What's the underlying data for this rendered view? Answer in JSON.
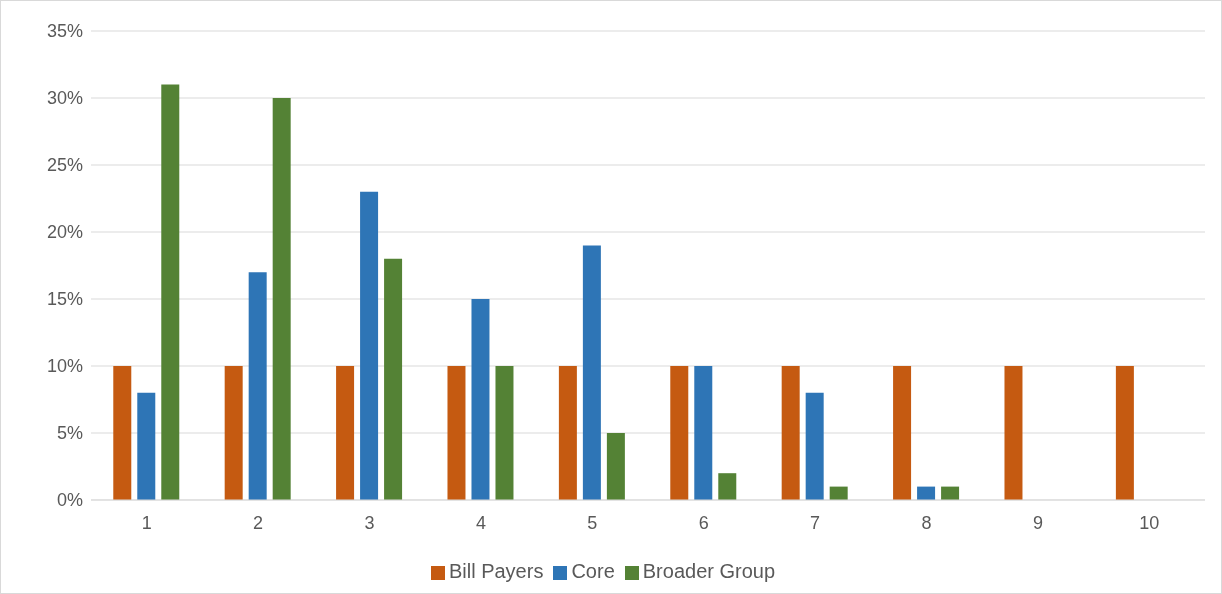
{
  "chart_data": {
    "type": "bar",
    "categories": [
      "1",
      "2",
      "3",
      "4",
      "5",
      "6",
      "7",
      "8",
      "9",
      "10"
    ],
    "series": [
      {
        "name": "Bill Payers",
        "color": "#c55a11",
        "values": [
          10,
          10,
          10,
          10,
          10,
          10,
          10,
          10,
          10,
          10
        ]
      },
      {
        "name": "Core",
        "color": "#2e75b6",
        "values": [
          8,
          17,
          23,
          15,
          19,
          10,
          8,
          1,
          0,
          0
        ]
      },
      {
        "name": "Broader Group",
        "color": "#548235",
        "values": [
          31,
          30,
          18,
          10,
          5,
          2,
          1,
          1,
          0,
          0
        ]
      }
    ],
    "ylim": [
      0,
      35
    ],
    "yticks": [
      {
        "value": 0,
        "label": "0%"
      },
      {
        "value": 5,
        "label": "5%"
      },
      {
        "value": 10,
        "label": "10%"
      },
      {
        "value": 15,
        "label": "15%"
      },
      {
        "value": 20,
        "label": "20%"
      },
      {
        "value": 25,
        "label": "25%"
      },
      {
        "value": 30,
        "label": "30%"
      },
      {
        "value": 35,
        "label": "35%"
      }
    ],
    "grid": "y",
    "legend": "bottom"
  }
}
